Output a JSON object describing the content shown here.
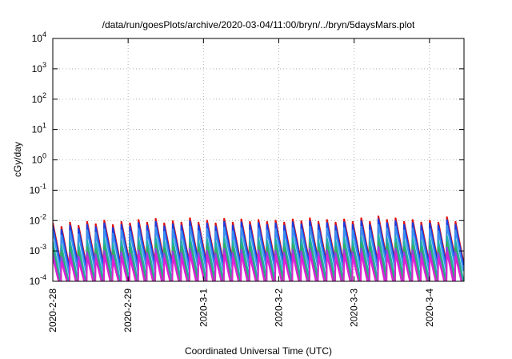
{
  "chart_data": {
    "type": "line",
    "title": "/data/run/goesPlots/archive/2020-03-04/11:00/bryn/../bryn/5daysMars.plot",
    "xlabel": "Coordinated Universal Time (UTC)",
    "ylabel": "cGy/day",
    "x_tick_labels": [
      "2020-2-28",
      "2020-2-29",
      "2020-3-1",
      "2020-3-2",
      "2020-3-3",
      "2020-3-4"
    ],
    "xlim": [
      "2020-02-28T00:00",
      "2020-03-04T11:00"
    ],
    "yscale": "log",
    "ylim": [
      0.0001,
      10000
    ],
    "y_tick_labels": [
      {
        "base": "10",
        "exp": "4"
      },
      {
        "base": "10",
        "exp": "3"
      },
      {
        "base": "10",
        "exp": "2"
      },
      {
        "base": "10",
        "exp": "1"
      },
      {
        "base": "10",
        "exp": "0"
      },
      {
        "base": "10",
        "exp": "-1"
      },
      {
        "base": "10",
        "exp": "-2"
      },
      {
        "base": "10",
        "exp": "-3"
      },
      {
        "base": "10",
        "exp": "-4"
      }
    ],
    "grid": true,
    "series": [
      {
        "color": "#e01010",
        "values": [
          0.0085,
          0.0065,
          0.009,
          0.007,
          0.0095,
          0.008,
          0.0105,
          0.0075,
          0.0095,
          0.0085,
          0.011,
          0.009,
          0.012,
          0.0085,
          0.01,
          0.009,
          0.0125,
          0.009,
          0.0105,
          0.0085,
          0.012,
          0.009,
          0.0115,
          0.0095,
          0.011,
          0.0095,
          0.0105,
          0.009,
          0.0115,
          0.01,
          0.0125,
          0.0095,
          0.011,
          0.009,
          0.0115,
          0.0095,
          0.0125,
          0.0095,
          0.0145,
          0.011,
          0.0125,
          0.0095,
          0.011,
          0.009,
          0.0105,
          0.009,
          0.0135,
          0.0095
        ]
      },
      {
        "color": "#1a3ee0",
        "values": [
          0.0068,
          0.0052,
          0.0072,
          0.0056,
          0.0076,
          0.0064,
          0.0084,
          0.006,
          0.0076,
          0.0068,
          0.0088,
          0.0072,
          0.0096,
          0.0068,
          0.008,
          0.0072,
          0.01,
          0.0072,
          0.0084,
          0.0068,
          0.0096,
          0.0072,
          0.0092,
          0.0076,
          0.0088,
          0.0076,
          0.0084,
          0.0072,
          0.0092,
          0.008,
          0.01,
          0.0076,
          0.0088,
          0.0072,
          0.0092,
          0.0076,
          0.01,
          0.0076,
          0.0116,
          0.0088,
          0.01,
          0.0076,
          0.0088,
          0.0072,
          0.0084,
          0.0072,
          0.0108,
          0.0076
        ]
      },
      {
        "color": "#3a90f0",
        "values": [
          0.0045,
          0.0034,
          0.0047,
          0.0037,
          0.005,
          0.0042,
          0.0055,
          0.0039,
          0.005,
          0.0045,
          0.0058,
          0.0047,
          0.0063,
          0.0045,
          0.0053,
          0.0047,
          0.0066,
          0.0047,
          0.0055,
          0.0045,
          0.0063,
          0.0047,
          0.006,
          0.005,
          0.0058,
          0.005,
          0.0055,
          0.0047,
          0.006,
          0.0053,
          0.0066,
          0.005,
          0.0058,
          0.0047,
          0.006,
          0.005,
          0.0066,
          0.005,
          0.0076,
          0.0058,
          0.0066,
          0.005,
          0.0058,
          0.0047,
          0.0055,
          0.0047,
          0.0071,
          0.005
        ]
      },
      {
        "color": "#20b0b0",
        "values": [
          0.0021,
          0.0016,
          0.0022,
          0.0017,
          0.0023,
          0.002,
          0.0026,
          0.0018,
          0.0023,
          0.0021,
          0.0027,
          0.0022,
          0.0029,
          0.0021,
          0.0025,
          0.0022,
          0.0031,
          0.0022,
          0.0026,
          0.0021,
          0.0029,
          0.0022,
          0.0028,
          0.0023,
          0.0027,
          0.0023,
          0.0026,
          0.0022,
          0.0028,
          0.0025,
          0.0031,
          0.0023,
          0.0027,
          0.0022,
          0.0028,
          0.0023,
          0.0031,
          0.0023,
          0.0036,
          0.0027,
          0.0031,
          0.0023,
          0.0027,
          0.0022,
          0.0026,
          0.0022,
          0.0033,
          0.0023
        ]
      },
      {
        "color": "#30b060",
        "values": [
          0.0013,
          0.001,
          0.0014,
          0.0011,
          0.0014,
          0.0012,
          0.0016,
          0.0011,
          0.0014,
          0.0013,
          0.0016,
          0.0014,
          0.0018,
          0.0013,
          0.0015,
          0.0014,
          0.0019,
          0.0014,
          0.0016,
          0.0013,
          0.0018,
          0.0014,
          0.0017,
          0.0014,
          0.0016,
          0.0014,
          0.0016,
          0.0014,
          0.0017,
          0.0015,
          0.0019,
          0.0014,
          0.0016,
          0.0014,
          0.0017,
          0.0014,
          0.0019,
          0.0014,
          0.0022,
          0.0016,
          0.0019,
          0.0014,
          0.0016,
          0.0014,
          0.0016,
          0.0014,
          0.002,
          0.0014
        ]
      },
      {
        "color": "#9a40e0",
        "values": [
          0.00085,
          0.00065,
          0.0009,
          0.0007,
          0.00095,
          0.0008,
          0.00105,
          0.00075,
          0.00095,
          0.00085,
          0.0011,
          0.0009,
          0.0012,
          0.00085,
          0.001,
          0.0009,
          0.00125,
          0.0009,
          0.00105,
          0.00085,
          0.0012,
          0.0009,
          0.00115,
          0.00095,
          0.0011,
          0.00095,
          0.00105,
          0.0009,
          0.00115,
          0.001,
          0.00125,
          0.00095,
          0.0011,
          0.0009,
          0.00115,
          0.00095,
          0.00125,
          0.00095,
          0.00145,
          0.0011,
          0.00125,
          0.00095,
          0.0011,
          0.0009,
          0.00105,
          0.0009,
          0.00135,
          0.00095
        ]
      },
      {
        "color": "#e020d0",
        "values": [
          0.0006,
          0.00045,
          0.00063,
          0.00049,
          0.00067,
          0.00056,
          0.00074,
          0.00053,
          0.00067,
          0.0006,
          0.00077,
          0.00063,
          0.00084,
          0.0006,
          0.0007,
          0.00063,
          0.00088,
          0.00063,
          0.00074,
          0.0006,
          0.00084,
          0.00063,
          0.00081,
          0.00067,
          0.00077,
          0.00067,
          0.00074,
          0.00063,
          0.00081,
          0.0007,
          0.00088,
          0.00067,
          0.00077,
          0.00063,
          0.00081,
          0.00067,
          0.00088,
          0.00067,
          0.00102,
          0.00077,
          0.00088,
          0.00067,
          0.00077,
          0.00063,
          0.00074,
          0.00063,
          0.00095,
          0.00067
        ]
      }
    ]
  }
}
